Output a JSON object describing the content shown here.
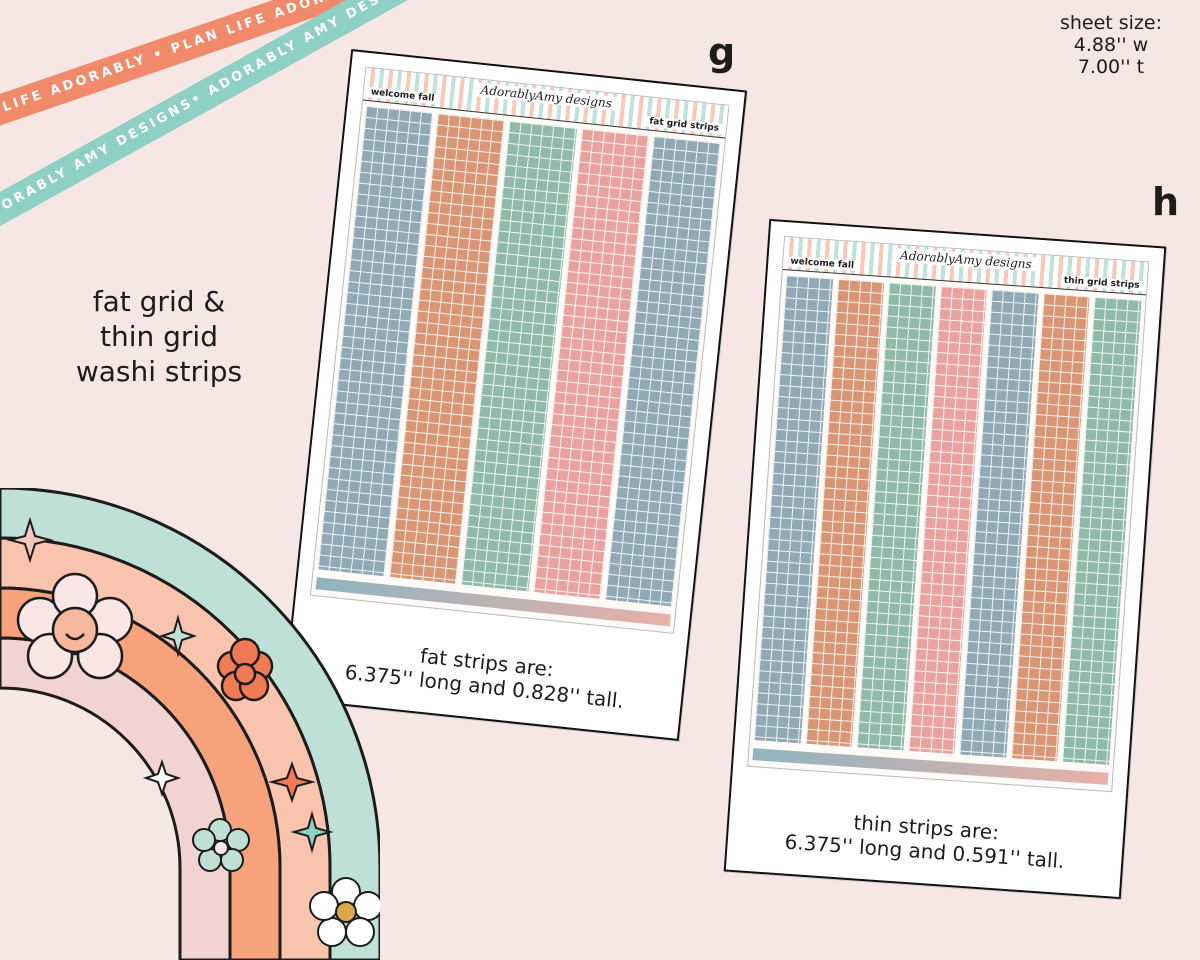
{
  "ribbons": {
    "orange": "PLAN LIFE ADORABLY • PLAN LIFE ADORABLY • PLAN LIFE ADO",
    "mint": "ADORABLY AMY DESIGNS• ADORABLY AMY DESIGNS • AD"
  },
  "sheet_size": {
    "label": "sheet size:",
    "width": "4.88'' w",
    "height": "7.00'' t"
  },
  "heading": {
    "line1": "fat grid &",
    "line2": "thin grid",
    "line3": "washi strips"
  },
  "card_g": {
    "letter": "g",
    "tag_left": "welcome fall",
    "logo": "AdorablyAmy designs",
    "tag_right": "fat grid strips",
    "strip_colors": [
      "#90a9b5",
      "#d99675",
      "#8fb9a8",
      "#e8a3a0",
      "#90a9b5"
    ],
    "caption_line1": "fat strips are:",
    "caption_line2": "6.375'' long and 0.828'' tall."
  },
  "card_h": {
    "letter": "h",
    "tag_left": "welcome fall",
    "logo": "AdorablyAmy designs",
    "tag_right": "thin grid strips",
    "strip_colors": [
      "#90a9b5",
      "#d99675",
      "#8fb9a8",
      "#e8a3a0",
      "#90a9b5",
      "#d99675",
      "#8fb9a8"
    ],
    "caption_line1": "thin strips are:",
    "caption_line2": "6.375'' long and 0.591'' tall."
  },
  "colors": {
    "background": "#f6e6e4",
    "orange": "#f08a6a",
    "mint": "#8fd0c4"
  }
}
